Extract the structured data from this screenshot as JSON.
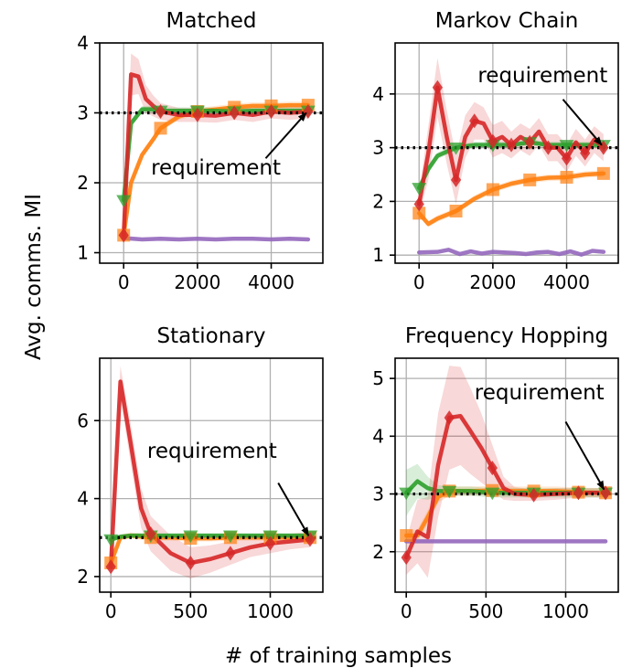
{
  "figure": {
    "ylabel": "Avg. comms. MI",
    "xlabel": "# of training samples"
  },
  "colors": {
    "red": "#d62728",
    "orange": "#ff7f0e",
    "green": "#2ca02c",
    "purple": "#9467bd",
    "requirement_line": "#000000"
  },
  "chart_data": [
    {
      "type": "line",
      "title": "Matched",
      "xlim": [
        -650,
        5400
      ],
      "ylim": [
        0.85,
        4.0
      ],
      "xticks": [
        0,
        2000,
        4000
      ],
      "xtick_labels": [
        "0",
        "2000",
        "4000"
      ],
      "yticks": [
        1,
        2,
        3,
        4
      ],
      "ytick_labels": [
        "1",
        "2",
        "3",
        "4"
      ],
      "requirement": 3,
      "annotation": {
        "text": "requirement",
        "text_at": [
          2500,
          2.12
        ],
        "arrow_from": [
          3850,
          2.35
        ],
        "arrow_to": [
          4950,
          3.0
        ]
      },
      "series": [
        {
          "color": "red",
          "marker": "diamond",
          "x": [
            0,
            200,
            400,
            600,
            800,
            1000,
            1500,
            2000,
            2500,
            3000,
            3500,
            4000,
            4500,
            5000
          ],
          "y": [
            1.25,
            3.55,
            3.52,
            3.2,
            3.1,
            3.02,
            2.97,
            2.97,
            2.96,
            3.0,
            2.97,
            3.02,
            3.0,
            3.02
          ],
          "band": [
            0.08,
            0.3,
            0.25,
            0.2,
            0.15,
            0.12,
            0.1,
            0.1,
            0.1,
            0.1,
            0.1,
            0.1,
            0.1,
            0.1
          ],
          "marker_x": [
            0,
            1000,
            2000,
            3000,
            4000,
            5000
          ]
        },
        {
          "color": "orange",
          "marker": "square",
          "x": [
            0,
            200,
            500,
            800,
            1000,
            1500,
            2000,
            2500,
            3000,
            3500,
            4000,
            4500,
            5000
          ],
          "y": [
            1.25,
            2.0,
            2.4,
            2.62,
            2.78,
            2.95,
            3.02,
            3.05,
            3.08,
            3.1,
            3.1,
            3.11,
            3.11
          ],
          "band": [
            0.05,
            0.05,
            0.05,
            0.05,
            0.05,
            0.05,
            0.05,
            0.05,
            0.05,
            0.05,
            0.05,
            0.05,
            0.05
          ],
          "marker_x": [
            0,
            1000,
            2000,
            3000,
            4000,
            5000
          ]
        },
        {
          "color": "green",
          "marker": "triangle-down",
          "x": [
            0,
            200,
            500,
            800,
            1000,
            1500,
            2000,
            2500,
            3000,
            3500,
            4000,
            4500,
            5000
          ],
          "y": [
            1.75,
            2.85,
            3.05,
            3.05,
            3.03,
            3.03,
            3.03,
            3.03,
            3.02,
            3.03,
            3.03,
            3.03,
            3.03
          ],
          "band": [
            0.05,
            0.05,
            0.05,
            0.05,
            0.05,
            0.05,
            0.05,
            0.05,
            0.05,
            0.05,
            0.05,
            0.05,
            0.05
          ],
          "marker_x": [
            0,
            1000,
            2000,
            3000,
            4000,
            5000
          ]
        },
        {
          "color": "purple",
          "marker": "none",
          "x": [
            0,
            500,
            1000,
            1500,
            2000,
            2500,
            3000,
            3500,
            4000,
            4500,
            5000
          ],
          "y": [
            1.21,
            1.19,
            1.2,
            1.19,
            1.2,
            1.19,
            1.2,
            1.2,
            1.19,
            1.2,
            1.19
          ],
          "band": [],
          "marker_x": []
        }
      ]
    },
    {
      "type": "line",
      "title": "Markov Chain",
      "xlim": [
        -650,
        5400
      ],
      "ylim": [
        0.85,
        4.95
      ],
      "xticks": [
        0,
        2000,
        4000
      ],
      "xtick_labels": [
        "0",
        "2000",
        "4000"
      ],
      "yticks": [
        1,
        2,
        3,
        4
      ],
      "ytick_labels": [
        "1",
        "2",
        "3",
        "4"
      ],
      "requirement": 3,
      "annotation": {
        "text": "requirement",
        "text_at": [
          3350,
          4.22
        ],
        "arrow_from": [
          3900,
          3.9
        ],
        "arrow_to": [
          4950,
          3.05
        ]
      },
      "series": [
        {
          "color": "red",
          "marker": "diamond",
          "x": [
            0,
            250,
            500,
            750,
            1000,
            1250,
            1500,
            1750,
            2000,
            2250,
            2500,
            2750,
            3000,
            3250,
            3500,
            3750,
            4000,
            4250,
            4500,
            4750,
            5000
          ],
          "y": [
            1.95,
            2.9,
            4.12,
            3.2,
            2.4,
            3.2,
            3.5,
            3.45,
            3.12,
            3.2,
            3.05,
            3.2,
            3.1,
            3.3,
            3.0,
            3.0,
            2.8,
            3.1,
            2.9,
            3.15,
            3.0
          ],
          "band": [
            0.2,
            0.5,
            0.55,
            0.5,
            0.45,
            0.4,
            0.35,
            0.3,
            0.3,
            0.3,
            0.25,
            0.25,
            0.25,
            0.25,
            0.25,
            0.25,
            0.25,
            0.25,
            0.25,
            0.25,
            0.25
          ],
          "marker_x": [
            0,
            500,
            1000,
            1500,
            2000,
            2500,
            3000,
            3500,
            4000,
            4500,
            5000
          ]
        },
        {
          "color": "orange",
          "marker": "square",
          "x": [
            0,
            250,
            500,
            1000,
            1500,
            2000,
            2500,
            3000,
            3500,
            4000,
            4500,
            5000
          ],
          "y": [
            1.78,
            1.58,
            1.68,
            1.82,
            2.05,
            2.22,
            2.33,
            2.4,
            2.44,
            2.45,
            2.5,
            2.52
          ],
          "band": [
            0.06,
            0.06,
            0.06,
            0.06,
            0.06,
            0.06,
            0.06,
            0.06,
            0.06,
            0.06,
            0.06,
            0.06
          ],
          "marker_x": [
            0,
            1000,
            2000,
            3000,
            4000,
            5000
          ]
        },
        {
          "color": "green",
          "marker": "triangle-down",
          "x": [
            0,
            250,
            500,
            1000,
            1500,
            2000,
            2500,
            3000,
            3500,
            4000,
            4500,
            5000
          ],
          "y": [
            2.25,
            2.6,
            2.85,
            3.0,
            3.05,
            3.05,
            3.05,
            3.1,
            3.05,
            3.05,
            3.05,
            3.05
          ],
          "band": [
            0.06,
            0.06,
            0.06,
            0.06,
            0.06,
            0.06,
            0.06,
            0.06,
            0.06,
            0.06,
            0.06,
            0.06
          ],
          "marker_x": [
            0,
            1000,
            2000,
            3000,
            4000,
            5000
          ]
        },
        {
          "color": "purple",
          "marker": "none",
          "x": [
            0,
            500,
            800,
            1100,
            1400,
            1700,
            2000,
            2300,
            2600,
            2900,
            3200,
            3500,
            3800,
            4100,
            4400,
            4700,
            5000
          ],
          "y": [
            1.05,
            1.06,
            1.1,
            1.02,
            1.07,
            1.03,
            1.06,
            1.05,
            1.04,
            1.02,
            1.05,
            1.06,
            1.02,
            1.07,
            1.01,
            1.08,
            1.06
          ],
          "band": [],
          "marker_x": []
        }
      ]
    },
    {
      "type": "line",
      "title": "Stationary",
      "xlim": [
        -70,
        1330
      ],
      "ylim": [
        1.6,
        7.6
      ],
      "xticks": [
        0,
        500,
        1000
      ],
      "xtick_labels": [
        "0",
        "500",
        "1000"
      ],
      "yticks": [
        2,
        4,
        6
      ],
      "ytick_labels": [
        "2",
        "4",
        "6"
      ],
      "requirement": 3,
      "annotation": {
        "text": "requirement",
        "text_at": [
          635,
          5.05
        ],
        "arrow_from": [
          1050,
          4.4
        ],
        "arrow_to": [
          1240,
          3.05
        ]
      },
      "series": [
        {
          "color": "red",
          "marker": "diamond",
          "x": [
            0,
            60,
            125,
            190,
            250,
            375,
            500,
            625,
            750,
            875,
            1000,
            1125,
            1250
          ],
          "y": [
            2.25,
            7.0,
            5.4,
            3.75,
            3.1,
            2.6,
            2.35,
            2.45,
            2.6,
            2.75,
            2.85,
            2.9,
            2.95
          ],
          "band": [
            0.25,
            0.4,
            0.5,
            0.5,
            0.45,
            0.45,
            0.4,
            0.35,
            0.3,
            0.25,
            0.25,
            0.2,
            0.2
          ],
          "marker_x": [
            0,
            250,
            500,
            750,
            1000,
            1250
          ]
        },
        {
          "color": "orange",
          "marker": "square",
          "x": [
            0,
            60,
            125,
            250,
            375,
            500,
            625,
            750,
            875,
            1000,
            1125,
            1250
          ],
          "y": [
            2.35,
            3.0,
            3.05,
            3.0,
            3.0,
            2.98,
            2.98,
            3.0,
            3.0,
            3.0,
            3.0,
            3.0
          ],
          "band": [
            0.08,
            0.08,
            0.08,
            0.08,
            0.08,
            0.08,
            0.08,
            0.08,
            0.08,
            0.08,
            0.08,
            0.08
          ],
          "marker_x": [
            0,
            250,
            500,
            750,
            1000,
            1250
          ]
        },
        {
          "color": "green",
          "marker": "triangle-down",
          "x": [
            0,
            60,
            125,
            250,
            375,
            500,
            625,
            750,
            875,
            1000,
            1125,
            1250
          ],
          "y": [
            2.95,
            3.02,
            3.05,
            3.05,
            3.05,
            3.05,
            3.05,
            3.05,
            3.05,
            3.05,
            3.05,
            3.05
          ],
          "band": [
            0.06,
            0.06,
            0.06,
            0.06,
            0.06,
            0.06,
            0.06,
            0.06,
            0.06,
            0.06,
            0.06,
            0.06
          ],
          "marker_x": [
            0,
            250,
            500,
            750,
            1000,
            1250
          ]
        }
      ]
    },
    {
      "type": "line",
      "title": "Frequency Hopping",
      "xlim": [
        -70,
        1330
      ],
      "ylim": [
        1.3,
        5.35
      ],
      "xticks": [
        0,
        500,
        1000
      ],
      "xtick_labels": [
        "0",
        "500",
        "1000"
      ],
      "yticks": [
        2,
        3,
        4,
        5
      ],
      "ytick_labels": [
        "2",
        "3",
        "4",
        "5"
      ],
      "requirement": 3,
      "annotation": {
        "text": "requirement",
        "text_at": [
          835,
          4.64
        ],
        "arrow_from": [
          1000,
          4.25
        ],
        "arrow_to": [
          1240,
          3.08
        ]
      },
      "series": [
        {
          "color": "red",
          "marker": "diamond",
          "x": [
            0,
            70,
            135,
            200,
            270,
            340,
            400,
            470,
            540,
            610,
            680,
            800,
            940,
            1080,
            1250
          ],
          "y": [
            1.9,
            2.35,
            2.25,
            3.5,
            4.32,
            4.35,
            4.1,
            3.8,
            3.45,
            3.1,
            3.0,
            2.98,
            3.0,
            3.02,
            3.02
          ],
          "band": [
            0.3,
            0.55,
            0.7,
            0.9,
            0.9,
            0.85,
            0.75,
            0.6,
            0.4,
            0.2,
            0.12,
            0.1,
            0.1,
            0.08,
            0.08
          ],
          "marker_x": [
            0,
            270,
            540,
            800,
            1080,
            1250
          ]
        },
        {
          "color": "orange",
          "marker": "square",
          "x": [
            0,
            70,
            135,
            200,
            270,
            400,
            540,
            680,
            800,
            940,
            1080,
            1250
          ],
          "y": [
            2.28,
            2.28,
            2.6,
            2.95,
            3.05,
            3.05,
            3.06,
            3.05,
            3.05,
            3.05,
            3.03,
            3.02
          ],
          "band": [
            0.1,
            0.1,
            0.12,
            0.1,
            0.08,
            0.08,
            0.08,
            0.08,
            0.08,
            0.08,
            0.08,
            0.08
          ],
          "marker_x": [
            0,
            270,
            540,
            800,
            1080,
            1250
          ]
        },
        {
          "color": "green",
          "marker": "triangle-down",
          "x": [
            0,
            70,
            135,
            200,
            270,
            400,
            540,
            680,
            800,
            940,
            1080,
            1250
          ],
          "y": [
            3.02,
            3.22,
            3.1,
            3.05,
            3.05,
            3.05,
            3.02,
            3.02,
            3.02,
            3.02,
            3.02,
            3.02
          ],
          "band": [
            0.4,
            0.3,
            0.2,
            0.1,
            0.08,
            0.08,
            0.08,
            0.08,
            0.08,
            0.08,
            0.08,
            0.08
          ],
          "marker_x": [
            0,
            270,
            540,
            800,
            1080,
            1250
          ]
        },
        {
          "color": "purple",
          "marker": "none",
          "x": [
            0,
            250,
            500,
            750,
            1000,
            1250
          ],
          "y": [
            2.18,
            2.18,
            2.18,
            2.18,
            2.18,
            2.18
          ],
          "band": [],
          "marker_x": []
        }
      ]
    }
  ]
}
